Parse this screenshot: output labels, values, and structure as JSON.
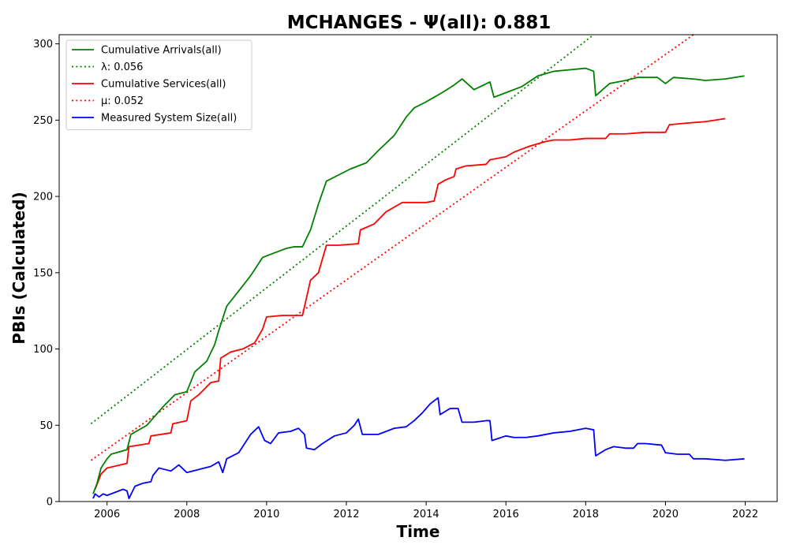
{
  "chart_data": {
    "type": "line",
    "title": "MCHANGES -  Ψ(all): 0.881",
    "xlabel": "Time",
    "ylabel": "PBIs (Calculated)",
    "xlim": [
      2004.8,
      2022.8
    ],
    "ylim": [
      0,
      306
    ],
    "x_ticks": [
      2006,
      2008,
      2010,
      2012,
      2014,
      2016,
      2018,
      2020,
      2022
    ],
    "y_ticks": [
      0,
      50,
      100,
      150,
      200,
      250,
      300
    ],
    "grid": false,
    "legend_position": "upper-left",
    "series": [
      {
        "name": "Cumulative Arrivals(all)",
        "style": "solid",
        "color": "#008000",
        "points": [
          [
            2005.65,
            5
          ],
          [
            2005.75,
            12
          ],
          [
            2005.85,
            22
          ],
          [
            2006.0,
            28
          ],
          [
            2006.1,
            31
          ],
          [
            2006.5,
            34
          ],
          [
            2006.6,
            44
          ],
          [
            2007.0,
            50
          ],
          [
            2007.4,
            62
          ],
          [
            2007.7,
            70
          ],
          [
            2008.0,
            72
          ],
          [
            2008.2,
            85
          ],
          [
            2008.5,
            92
          ],
          [
            2008.7,
            103
          ],
          [
            2008.8,
            112
          ],
          [
            2009.0,
            128
          ],
          [
            2009.3,
            138
          ],
          [
            2009.6,
            148
          ],
          [
            2009.9,
            160
          ],
          [
            2010.1,
            162
          ],
          [
            2010.3,
            164
          ],
          [
            2010.5,
            166
          ],
          [
            2010.7,
            167
          ],
          [
            2010.9,
            167
          ],
          [
            2011.1,
            178
          ],
          [
            2011.3,
            195
          ],
          [
            2011.5,
            210
          ],
          [
            2011.8,
            214
          ],
          [
            2012.1,
            218
          ],
          [
            2012.5,
            222
          ],
          [
            2012.8,
            230
          ],
          [
            2013.0,
            235
          ],
          [
            2013.2,
            240
          ],
          [
            2013.5,
            252
          ],
          [
            2013.7,
            258
          ],
          [
            2014.0,
            262
          ],
          [
            2014.2,
            265
          ],
          [
            2014.4,
            268
          ],
          [
            2014.7,
            273
          ],
          [
            2014.9,
            277
          ],
          [
            2015.2,
            270
          ],
          [
            2015.6,
            275
          ],
          [
            2015.7,
            265
          ],
          [
            2016.0,
            268
          ],
          [
            2016.4,
            272
          ],
          [
            2016.8,
            279
          ],
          [
            2017.2,
            282
          ],
          [
            2017.6,
            283
          ],
          [
            2018.0,
            284
          ],
          [
            2018.2,
            282
          ],
          [
            2018.25,
            266
          ],
          [
            2018.6,
            274
          ],
          [
            2019.0,
            276
          ],
          [
            2019.3,
            278
          ],
          [
            2019.8,
            278
          ],
          [
            2020.0,
            274
          ],
          [
            2020.2,
            278
          ],
          [
            2020.7,
            277
          ],
          [
            2021.0,
            276
          ],
          [
            2021.5,
            277
          ],
          [
            2021.98,
            279
          ]
        ]
      },
      {
        "name": "λ: 0.056",
        "style": "dotted",
        "color": "#008000",
        "points": [
          [
            2005.6,
            51
          ],
          [
            2018.2,
            306
          ]
        ]
      },
      {
        "name": "Cumulative Services(all)",
        "style": "solid",
        "color": "#ff0000",
        "points": [
          [
            2005.7,
            8
          ],
          [
            2005.85,
            18
          ],
          [
            2006.0,
            22
          ],
          [
            2006.5,
            25
          ],
          [
            2006.55,
            36
          ],
          [
            2007.05,
            38
          ],
          [
            2007.1,
            43
          ],
          [
            2007.6,
            45
          ],
          [
            2007.65,
            51
          ],
          [
            2008.0,
            53
          ],
          [
            2008.1,
            66
          ],
          [
            2008.3,
            70
          ],
          [
            2008.6,
            78
          ],
          [
            2008.8,
            79
          ],
          [
            2008.85,
            94
          ],
          [
            2009.1,
            98
          ],
          [
            2009.4,
            100
          ],
          [
            2009.7,
            104
          ],
          [
            2009.9,
            113
          ],
          [
            2010.0,
            121
          ],
          [
            2010.4,
            122
          ],
          [
            2010.9,
            122
          ],
          [
            2011.1,
            145
          ],
          [
            2011.3,
            150
          ],
          [
            2011.5,
            168
          ],
          [
            2011.8,
            168
          ],
          [
            2012.3,
            169
          ],
          [
            2012.35,
            178
          ],
          [
            2012.7,
            182
          ],
          [
            2013.0,
            190
          ],
          [
            2013.2,
            193
          ],
          [
            2013.4,
            196
          ],
          [
            2014.0,
            196
          ],
          [
            2014.2,
            197
          ],
          [
            2014.3,
            208
          ],
          [
            2014.5,
            211
          ],
          [
            2014.7,
            213
          ],
          [
            2014.75,
            218
          ],
          [
            2015.0,
            220
          ],
          [
            2015.5,
            221
          ],
          [
            2015.6,
            224
          ],
          [
            2016.0,
            226
          ],
          [
            2016.2,
            229
          ],
          [
            2016.6,
            233
          ],
          [
            2017.0,
            236
          ],
          [
            2017.2,
            237
          ],
          [
            2017.6,
            237
          ],
          [
            2018.0,
            238
          ],
          [
            2018.5,
            238
          ],
          [
            2018.6,
            241
          ],
          [
            2019.0,
            241
          ],
          [
            2019.5,
            242
          ],
          [
            2020.0,
            242
          ],
          [
            2020.1,
            247
          ],
          [
            2020.5,
            248
          ],
          [
            2021.0,
            249
          ],
          [
            2021.5,
            251
          ]
        ]
      },
      {
        "name": "μ: 0.052",
        "style": "dotted",
        "color": "#ff0000",
        "points": [
          [
            2005.6,
            27
          ],
          [
            2020.7,
            306
          ]
        ]
      },
      {
        "name": "Measured System Size(all)",
        "style": "solid",
        "color": "#0000ff",
        "points": [
          [
            2005.65,
            2
          ],
          [
            2005.7,
            5
          ],
          [
            2005.8,
            3
          ],
          [
            2005.9,
            5
          ],
          [
            2006.0,
            4
          ],
          [
            2006.2,
            6
          ],
          [
            2006.4,
            8
          ],
          [
            2006.5,
            7
          ],
          [
            2006.55,
            2
          ],
          [
            2006.7,
            10
          ],
          [
            2006.9,
            12
          ],
          [
            2007.1,
            13
          ],
          [
            2007.15,
            17
          ],
          [
            2007.3,
            22
          ],
          [
            2007.6,
            20
          ],
          [
            2007.8,
            24
          ],
          [
            2008.0,
            19
          ],
          [
            2008.3,
            21
          ],
          [
            2008.6,
            23
          ],
          [
            2008.8,
            26
          ],
          [
            2008.9,
            19
          ],
          [
            2009.0,
            28
          ],
          [
            2009.3,
            32
          ],
          [
            2009.6,
            44
          ],
          [
            2009.8,
            49
          ],
          [
            2009.95,
            40
          ],
          [
            2010.1,
            38
          ],
          [
            2010.3,
            45
          ],
          [
            2010.6,
            46
          ],
          [
            2010.8,
            48
          ],
          [
            2010.95,
            44
          ],
          [
            2011.0,
            35
          ],
          [
            2011.2,
            34
          ],
          [
            2011.4,
            38
          ],
          [
            2011.7,
            43
          ],
          [
            2012.0,
            45
          ],
          [
            2012.2,
            50
          ],
          [
            2012.3,
            54
          ],
          [
            2012.4,
            44
          ],
          [
            2012.8,
            44
          ],
          [
            2013.0,
            46
          ],
          [
            2013.2,
            48
          ],
          [
            2013.5,
            49
          ],
          [
            2013.7,
            53
          ],
          [
            2013.9,
            58
          ],
          [
            2014.1,
            64
          ],
          [
            2014.2,
            66
          ],
          [
            2014.3,
            68
          ],
          [
            2014.35,
            57
          ],
          [
            2014.6,
            61
          ],
          [
            2014.8,
            61
          ],
          [
            2014.9,
            52
          ],
          [
            2015.2,
            52
          ],
          [
            2015.5,
            53
          ],
          [
            2015.6,
            53
          ],
          [
            2015.65,
            40
          ],
          [
            2016.0,
            43
          ],
          [
            2016.2,
            42
          ],
          [
            2016.5,
            42
          ],
          [
            2016.8,
            43
          ],
          [
            2017.2,
            45
          ],
          [
            2017.6,
            46
          ],
          [
            2018.0,
            48
          ],
          [
            2018.2,
            47
          ],
          [
            2018.25,
            30
          ],
          [
            2018.5,
            34
          ],
          [
            2018.7,
            36
          ],
          [
            2019.0,
            35
          ],
          [
            2019.2,
            35
          ],
          [
            2019.3,
            38
          ],
          [
            2019.5,
            38
          ],
          [
            2019.9,
            37
          ],
          [
            2020.0,
            32
          ],
          [
            2020.3,
            31
          ],
          [
            2020.6,
            31
          ],
          [
            2020.7,
            28
          ],
          [
            2021.0,
            28
          ],
          [
            2021.5,
            27
          ],
          [
            2021.98,
            28
          ]
        ]
      }
    ]
  }
}
